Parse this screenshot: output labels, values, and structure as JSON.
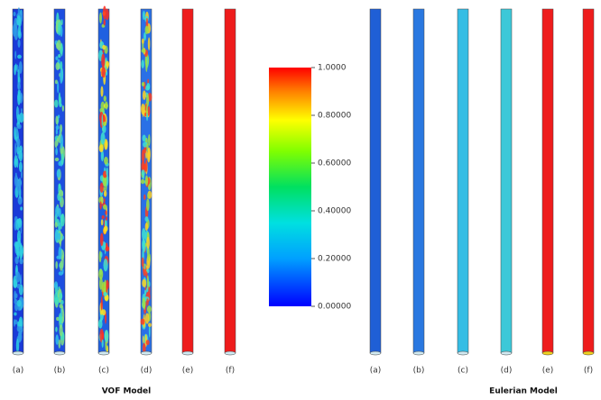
{
  "groups": [
    {
      "title": "VOF Model",
      "labels": [
        "(a)",
        "(b)",
        "(c)",
        "(d)",
        "(e)",
        "(f)"
      ]
    },
    {
      "title": "Eulerian Model",
      "labels": [
        "(a)",
        "(b)",
        "(c)",
        "(d)",
        "(e)",
        "(f)"
      ]
    }
  ],
  "colorbar": {
    "lim": [
      0,
      1
    ],
    "ticks": [
      {
        "value": 1,
        "label": "1.0000"
      },
      {
        "value": 0.8,
        "label": "0.80000"
      },
      {
        "value": 0.6,
        "label": "0.60000"
      },
      {
        "value": 0.4,
        "label": "0.40000"
      },
      {
        "value": 0.2,
        "label": "0.20000"
      },
      {
        "value": 0,
        "label": "0.00000"
      }
    ]
  }
}
